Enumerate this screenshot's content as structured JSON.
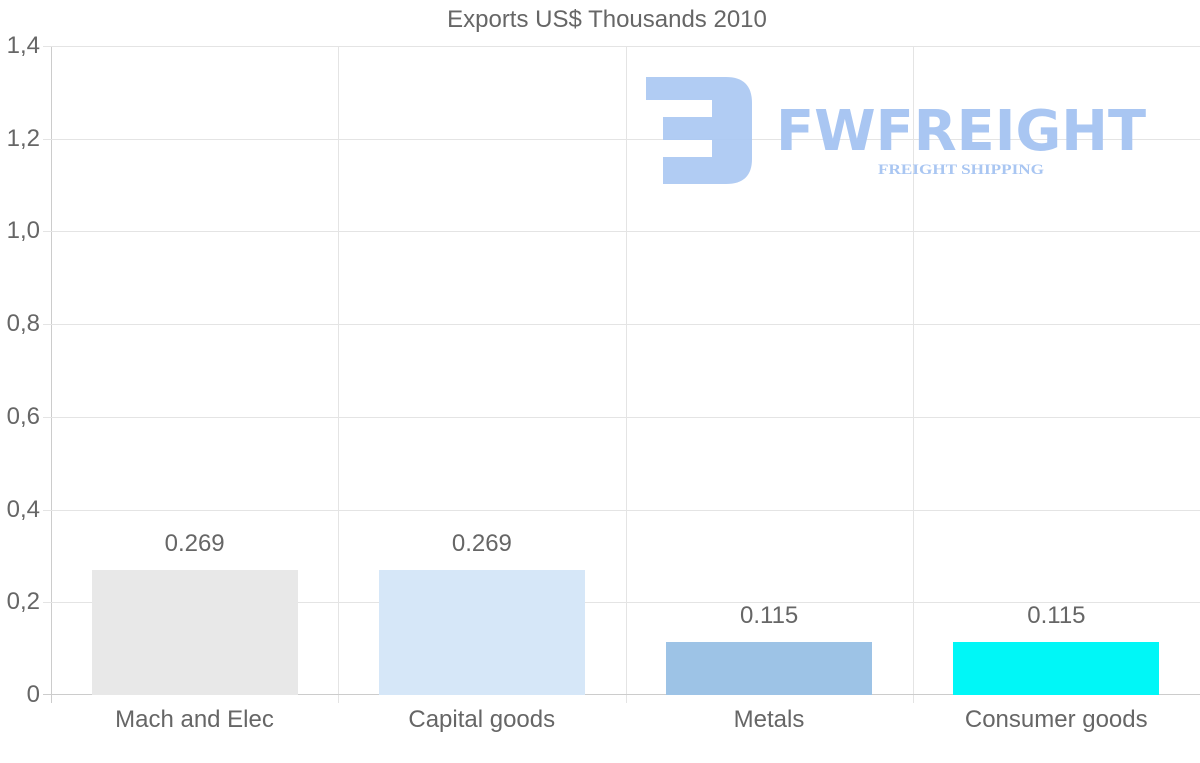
{
  "chart_data": {
    "type": "bar",
    "title": "Exports US$ Thousands 2010",
    "xlabel": "",
    "ylabel": "",
    "categories": [
      "Mach and Elec",
      "Capital goods",
      "Metals",
      "Consumer goods"
    ],
    "values": [
      0.269,
      0.269,
      0.115,
      0.115
    ],
    "value_labels": [
      "0.269",
      "0.269",
      "0.115",
      "0.115"
    ],
    "colors": [
      "#e8e8e8",
      "#d6e7f8",
      "#9dc3e6",
      "#00f7f7"
    ],
    "ylim": [
      0,
      1.4
    ],
    "yticks": [
      "0",
      "0,2",
      "0,4",
      "0,6",
      "0,8",
      "1,0",
      "1,2",
      "1,4"
    ],
    "grid": true,
    "legend": null
  },
  "watermark": {
    "brand": "FWFREIGHT",
    "tagline": "FREIGHT SHIPPING",
    "color": "#a9c6f2"
  }
}
